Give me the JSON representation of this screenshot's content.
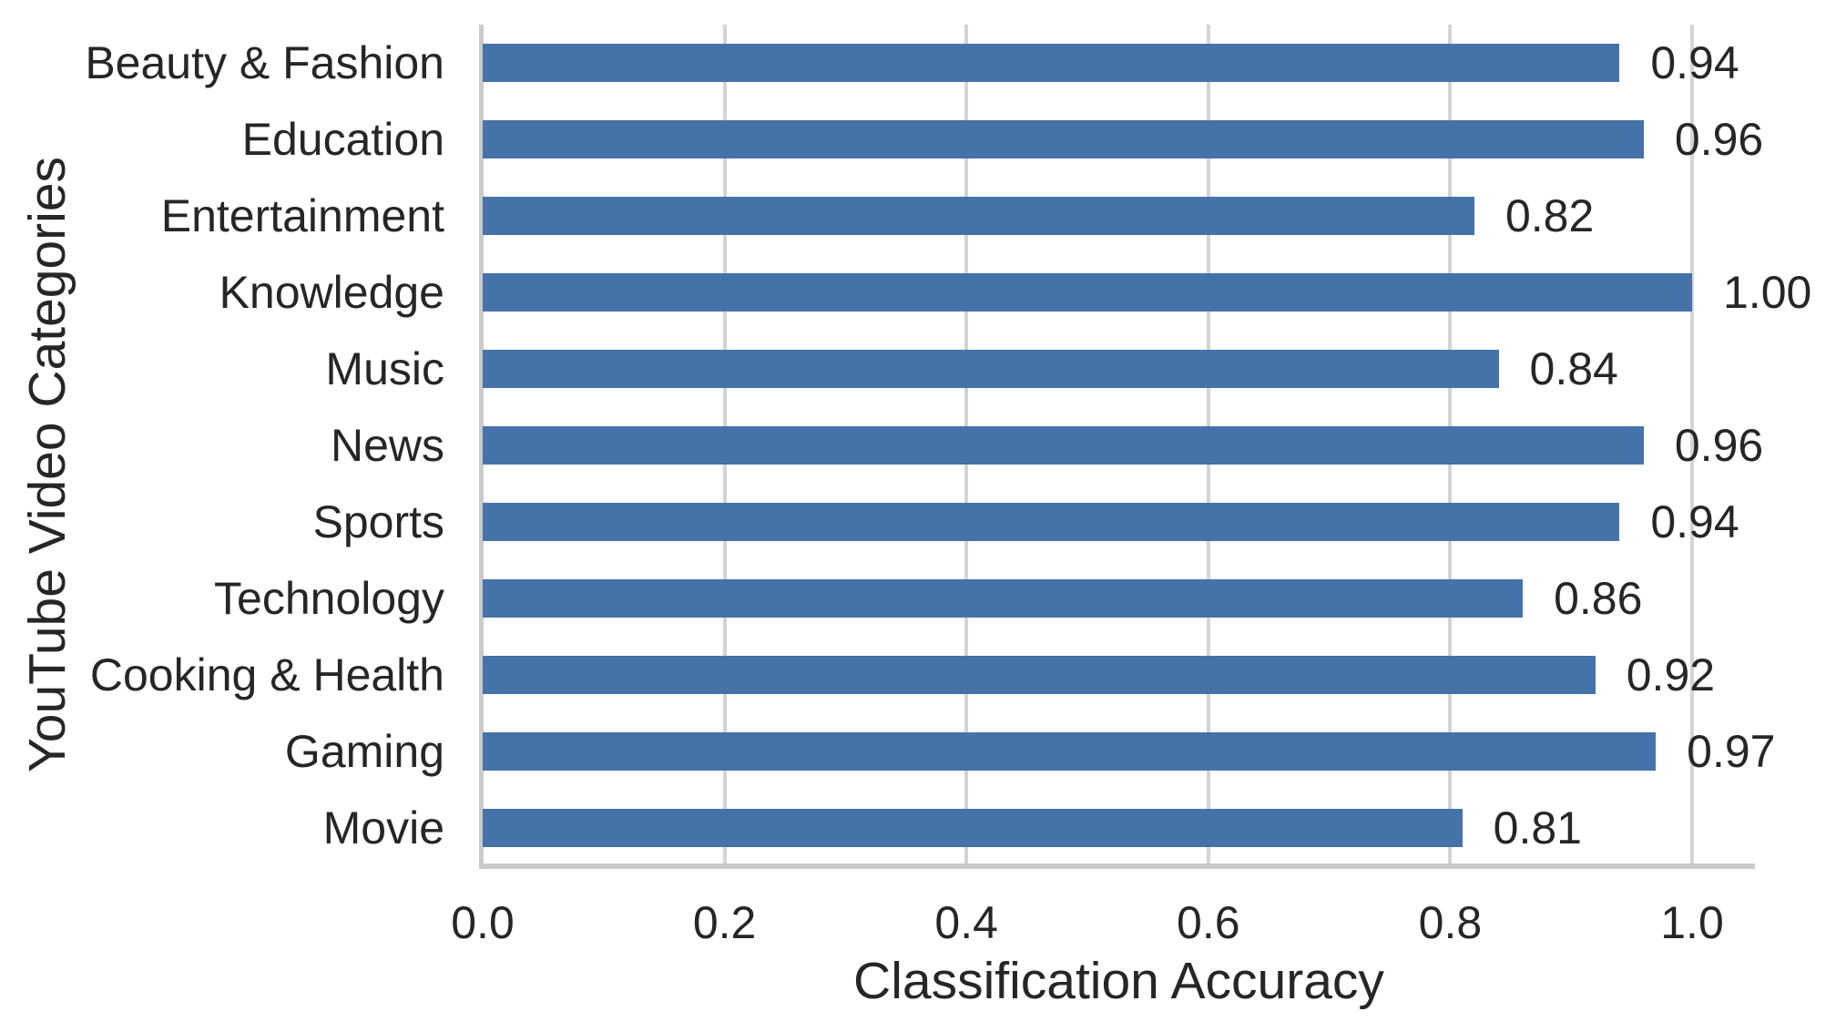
{
  "chart_data": {
    "type": "bar",
    "orientation": "horizontal",
    "xlabel": "Classification Accuracy",
    "ylabel": "YouTube Video Categories",
    "categories": [
      "Beauty & Fashion",
      "Education",
      "Entertainment",
      "Knowledge",
      "Music",
      "News",
      "Sports",
      "Technology",
      "Cooking & Health",
      "Gaming",
      "Movie"
    ],
    "values": [
      0.94,
      0.96,
      0.82,
      1.0,
      0.84,
      0.96,
      0.94,
      0.86,
      0.92,
      0.97,
      0.81
    ],
    "value_labels": [
      "0.94",
      "0.96",
      "0.82",
      "1.00",
      "0.84",
      "0.96",
      "0.94",
      "0.86",
      "0.92",
      "0.97",
      "0.81"
    ],
    "x_ticks": [
      {
        "label": "0.0",
        "value": 0.0
      },
      {
        "label": "0.2",
        "value": 0.2
      },
      {
        "label": "0.4",
        "value": 0.4
      },
      {
        "label": "0.6",
        "value": 0.6
      },
      {
        "label": "0.8",
        "value": 0.8
      },
      {
        "label": "1.0",
        "value": 1.0
      }
    ],
    "xlim": [
      0.0,
      1.053
    ],
    "grid": "vertical",
    "legend": "none",
    "bar_color": "#4573a9",
    "grid_color": "#d4d4d4",
    "spine_color": "#cbcbcb",
    "text_color": "#262626"
  }
}
